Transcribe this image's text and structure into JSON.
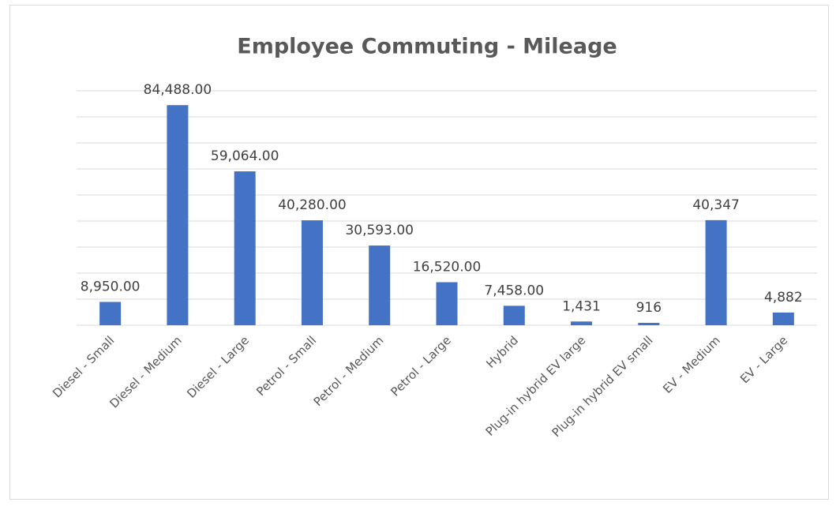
{
  "chart_data": {
    "type": "bar",
    "title": "Employee Commuting - Mileage",
    "categories": [
      "Diesel - Small",
      "Diesel - Medium",
      "Diesel - Large",
      "Petrol - Small",
      "Petrol - Medium",
      "Petrol - Large",
      "Hybrid",
      "Plug-in hybrid EV large",
      "Plug-in hybrid EV small",
      "EV - Medium",
      "EV - Large"
    ],
    "values": [
      8950,
      84488,
      59064,
      40280,
      30593,
      16520,
      7458,
      1431,
      916,
      40347,
      4882
    ],
    "value_labels": [
      "8,950.00",
      "84,488.00",
      "59,064.00",
      "40,280.00",
      "30,593.00",
      "16,520.00",
      "7,458.00",
      "1,431",
      "916",
      "40,347",
      "4,882"
    ],
    "color": "#4472c4",
    "ylim": [
      0,
      90000
    ],
    "yticks": [
      0,
      10000,
      20000,
      30000,
      40000,
      50000,
      60000,
      70000,
      80000,
      90000
    ],
    "grid": true
  }
}
